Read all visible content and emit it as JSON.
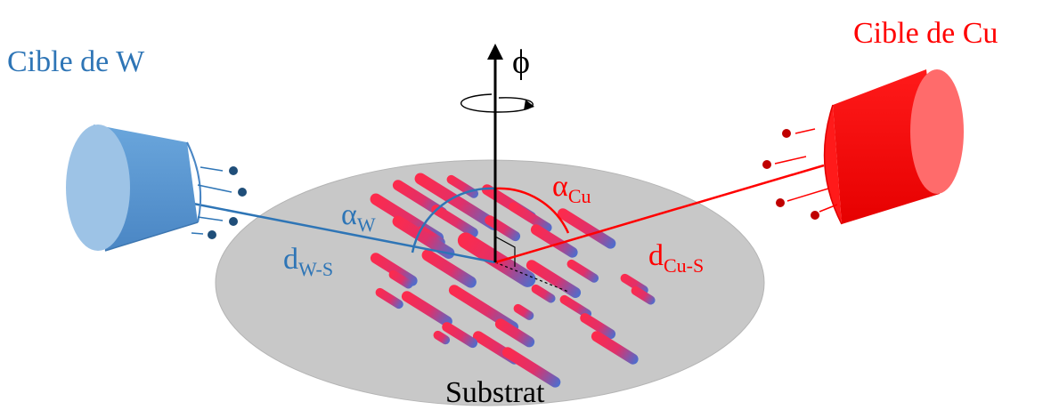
{
  "labels": {
    "target_w": "Cible de W",
    "target_cu": "Cible de Cu",
    "rotation": "ϕ",
    "alpha_w": "α",
    "alpha_w_sub": "W",
    "alpha_cu": "α",
    "alpha_cu_sub": "Cu",
    "dist_w": "d",
    "dist_w_sub": "W-S",
    "dist_cu": "d",
    "dist_cu_sub": "Cu-S",
    "substrate": "Substrat"
  },
  "colors": {
    "tungsten": "#2e75b6",
    "tungsten_light": "#9dc3e6",
    "tungsten_body": "#5b9bd5",
    "copper": "#ff0000",
    "copper_light": "#ff6b6b",
    "particle_w": "#1f4e79",
    "particle_cu": "#c00000",
    "substrate": "#c9c9c9",
    "substrate_edge": "#bdbdbd",
    "axis": "#000000"
  }
}
